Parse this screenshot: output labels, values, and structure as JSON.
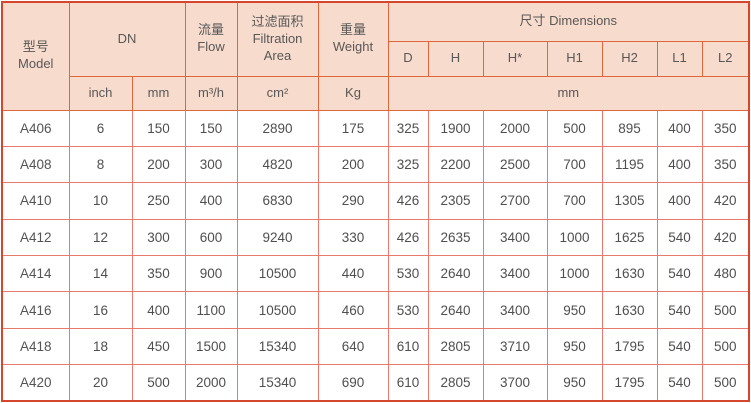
{
  "table": {
    "header": {
      "model_zh": "型号",
      "model_en": "Model",
      "dn": "DN",
      "flow_zh": "流量",
      "flow_en": "Flow",
      "filtration_zh": "过滤面积",
      "filtration_en1": "Filtration",
      "filtration_en2": "Area",
      "weight_zh": "重量",
      "weight_en": "Weight",
      "dimensions": "尺寸 Dimensions",
      "dim_cols": [
        "D",
        "H",
        "H*",
        "H1",
        "H2",
        "L1",
        "L2"
      ],
      "unit_inch": "inch",
      "unit_mm": "mm",
      "unit_flow": "m³/h",
      "unit_area": "cm²",
      "unit_weight": "Kg",
      "unit_dim_mm": "mm"
    },
    "rows": [
      [
        "A406",
        "6",
        "150",
        "150",
        "2890",
        "175",
        "325",
        "1900",
        "2000",
        "500",
        "895",
        "400",
        "350"
      ],
      [
        "A408",
        "8",
        "200",
        "300",
        "4820",
        "200",
        "325",
        "2200",
        "2500",
        "700",
        "1195",
        "400",
        "350"
      ],
      [
        "A410",
        "10",
        "250",
        "400",
        "6830",
        "290",
        "426",
        "2305",
        "2700",
        "700",
        "1305",
        "400",
        "420"
      ],
      [
        "A412",
        "12",
        "300",
        "600",
        "9240",
        "330",
        "426",
        "2635",
        "3400",
        "1000",
        "1625",
        "540",
        "420"
      ],
      [
        "A414",
        "14",
        "350",
        "900",
        "10500",
        "440",
        "530",
        "2640",
        "3400",
        "1000",
        "1630",
        "540",
        "480"
      ],
      [
        "A416",
        "16",
        "400",
        "1100",
        "10500",
        "460",
        "530",
        "2640",
        "3400",
        "950",
        "1630",
        "540",
        "500"
      ],
      [
        "A418",
        "18",
        "450",
        "1500",
        "15340",
        "640",
        "610",
        "2805",
        "3710",
        "950",
        "1795",
        "540",
        "500"
      ],
      [
        "A420",
        "20",
        "500",
        "2000",
        "15340",
        "690",
        "610",
        "2805",
        "3700",
        "950",
        "1795",
        "540",
        "500"
      ]
    ]
  },
  "colors": {
    "header_bg": "#f7dccd",
    "header_border": "#e0673c",
    "outer_border": "#d6452e",
    "data_border": "#e8796e",
    "header_text": "#595757",
    "data_text": "#4f4f4f"
  }
}
